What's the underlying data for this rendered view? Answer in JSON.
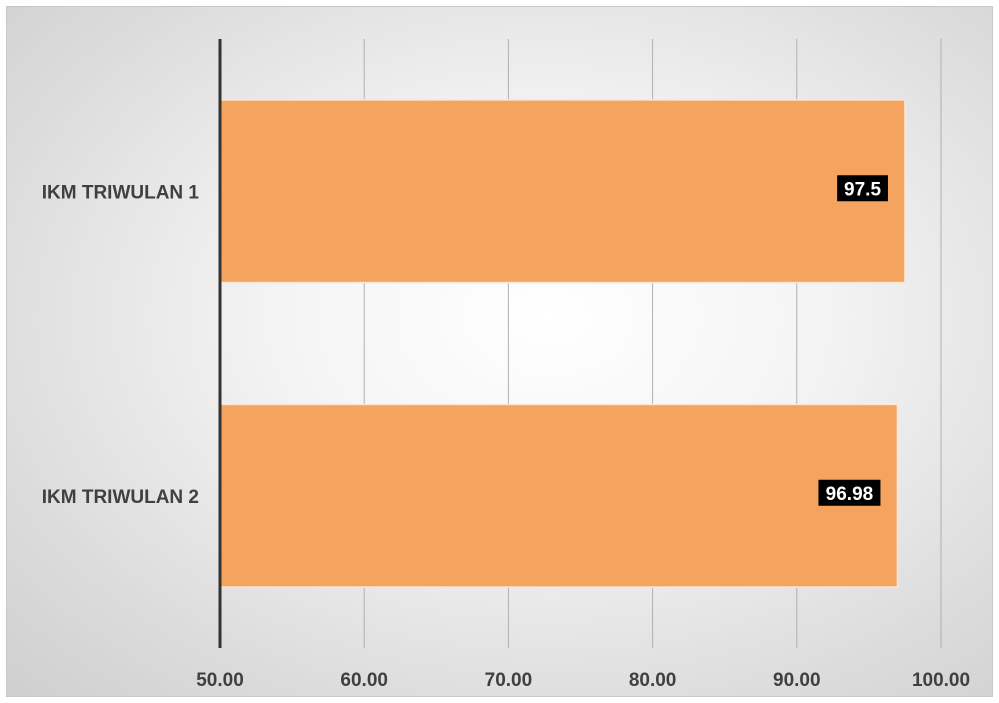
{
  "chart_data": {
    "type": "bar",
    "orientation": "horizontal",
    "categories": [
      "IKM TRIWULAN 1",
      "IKM TRIWULAN 2"
    ],
    "values": [
      97.5,
      96.98
    ],
    "data_labels": [
      "97.5",
      "96.98"
    ],
    "xlim": [
      50,
      100
    ],
    "x_ticks": [
      50,
      60,
      70,
      80,
      90,
      100
    ],
    "x_tick_labels": [
      "50.00",
      "60.00",
      "70.00",
      "80.00",
      "90.00",
      "100.00"
    ],
    "title": "",
    "xlabel": "",
    "ylabel": "",
    "grid": "vertical",
    "legend": "none",
    "colors": {
      "bar": "#f5a460",
      "bar_border": "#fde7d2",
      "data_label_bg": "#000000",
      "data_label_text": "#ffffff",
      "gridline": "#b0b0b0",
      "axis": "#333333",
      "text": "#404040"
    }
  }
}
